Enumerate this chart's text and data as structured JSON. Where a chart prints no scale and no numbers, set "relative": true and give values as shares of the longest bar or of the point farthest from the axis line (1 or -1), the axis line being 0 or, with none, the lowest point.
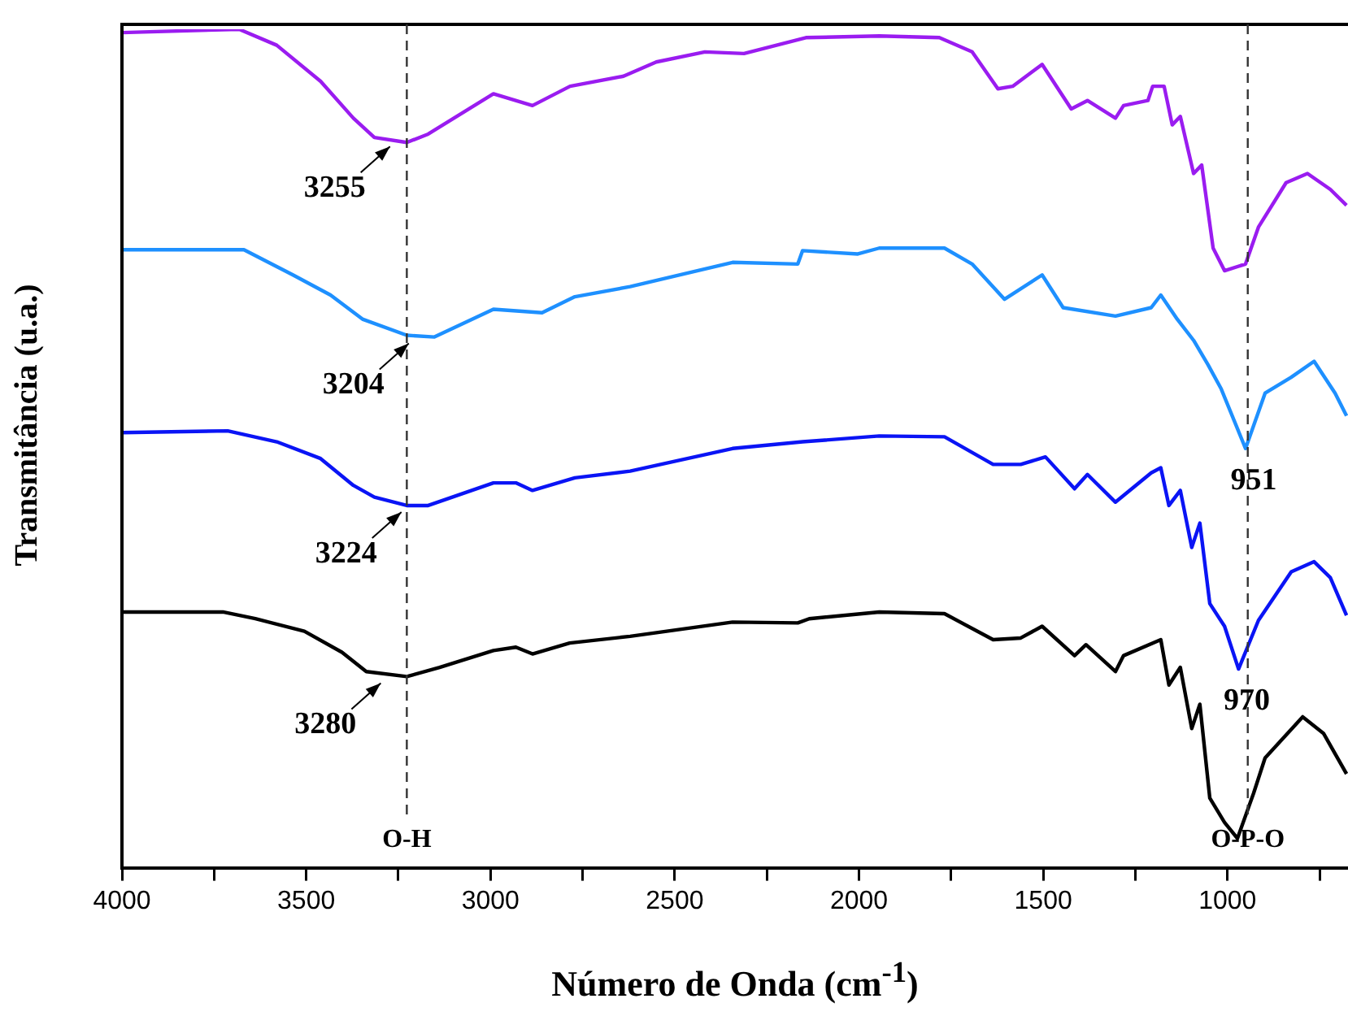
{
  "chart_data": {
    "type": "line",
    "relative": true,
    "xlabel": "Número de Onda (cm$^{-1}$)",
    "ylabel": "Transmitância (u.a.)",
    "xlim": [
      4000,
      673
    ],
    "xticks": [
      4000,
      {
        "value": 3750,
        "label": null
      },
      3500,
      {
        "value": 3250,
        "label": null
      },
      3000,
      {
        "value": 2750,
        "label": null
      },
      2500,
      {
        "value": 2250,
        "label": null
      },
      2000,
      {
        "value": 1750,
        "label": null
      },
      1500,
      {
        "value": 1250,
        "label": null
      },
      1000,
      {
        "value": 750,
        "label": null
      }
    ],
    "grid": false,
    "legend": false,
    "marker": "none",
    "line_style": "solid",
    "tick_labels": "x",
    "series": [
      {
        "color": "#9a1cf0",
        "x": [
          4000,
          3682,
          3580,
          3461,
          3372,
          3315,
          3227,
          3169,
          2992,
          2886,
          2784,
          2639,
          2550,
          2418,
          2312,
          2144,
          1945,
          1782,
          1693,
          1623,
          1583,
          1503,
          1424,
          1380,
          1304,
          1282,
          1216,
          1203,
          1172,
          1150,
          1128,
          1092,
          1070,
          1039,
          1008,
          951,
          916,
          841,
          783,
          721,
          677
        ],
        "values": [
          0.996,
          1.0,
          0.981,
          0.938,
          0.894,
          0.871,
          0.865,
          0.875,
          0.923,
          0.909,
          0.932,
          0.944,
          0.961,
          0.973,
          0.971,
          0.99,
          0.992,
          0.99,
          0.973,
          0.929,
          0.932,
          0.958,
          0.905,
          0.915,
          0.894,
          0.909,
          0.915,
          0.932,
          0.932,
          0.886,
          0.896,
          0.828,
          0.838,
          0.739,
          0.712,
          0.72,
          0.764,
          0.817,
          0.828,
          0.809,
          0.79
        ]
      },
      {
        "color": "#1e90ff",
        "x": [
          4000,
          3669,
          3536,
          3434,
          3346,
          3227,
          3152,
          2992,
          2860,
          2771,
          2621,
          2343,
          2166,
          2153,
          2003,
          1945,
          1768,
          1693,
          1605,
          1503,
          1446,
          1304,
          1207,
          1181,
          1136,
          1092,
          1053,
          1017,
          951,
          898,
          827,
          765,
          708,
          677
        ],
        "values": [
          0.737,
          0.737,
          0.707,
          0.683,
          0.654,
          0.635,
          0.633,
          0.666,
          0.662,
          0.681,
          0.693,
          0.722,
          0.72,
          0.736,
          0.732,
          0.739,
          0.739,
          0.72,
          0.678,
          0.707,
          0.668,
          0.658,
          0.668,
          0.683,
          0.654,
          0.629,
          0.6,
          0.571,
          0.5,
          0.566,
          0.585,
          0.604,
          0.566,
          0.539
        ]
      },
      {
        "color": "#0a14f5",
        "x": [
          4000,
          3713,
          3580,
          3461,
          3372,
          3315,
          3227,
          3169,
          2992,
          2931,
          2886,
          2771,
          2621,
          2343,
          2153,
          1945,
          1768,
          1636,
          1561,
          1494,
          1415,
          1380,
          1304,
          1207,
          1181,
          1159,
          1128,
          1097,
          1075,
          1048,
          1008,
          970,
          916,
          827,
          765,
          721,
          677
        ],
        "values": [
          0.519,
          0.521,
          0.508,
          0.488,
          0.456,
          0.442,
          0.432,
          0.432,
          0.459,
          0.459,
          0.45,
          0.465,
          0.473,
          0.5,
          0.508,
          0.515,
          0.514,
          0.481,
          0.481,
          0.49,
          0.452,
          0.469,
          0.436,
          0.471,
          0.477,
          0.432,
          0.45,
          0.382,
          0.411,
          0.315,
          0.288,
          0.237,
          0.295,
          0.353,
          0.365,
          0.346,
          0.301
        ]
      },
      {
        "color": "#000000",
        "x": [
          4000,
          3726,
          3638,
          3505,
          3403,
          3337,
          3227,
          3138,
          2992,
          2931,
          2886,
          2785,
          2621,
          2343,
          2166,
          2135,
          1945,
          1768,
          1636,
          1561,
          1503,
          1415,
          1384,
          1304,
          1282,
          1181,
          1159,
          1128,
          1097,
          1075,
          1048,
          1008,
          973,
          929,
          898,
          796,
          739,
          677
        ],
        "values": [
          0.305,
          0.305,
          0.297,
          0.282,
          0.257,
          0.234,
          0.228,
          0.239,
          0.259,
          0.263,
          0.255,
          0.268,
          0.276,
          0.293,
          0.292,
          0.297,
          0.305,
          0.303,
          0.272,
          0.274,
          0.288,
          0.253,
          0.266,
          0.234,
          0.253,
          0.272,
          0.218,
          0.239,
          0.166,
          0.195,
          0.083,
          0.054,
          0.035,
          0.089,
          0.131,
          0.18,
          0.16,
          0.112
        ]
      }
    ],
    "ref_lines": [
      {
        "axis": "x",
        "value": 3227,
        "label": "O-H",
        "line_style": "dashed",
        "color": "#333333"
      },
      {
        "axis": "x",
        "value": 945,
        "label": "O-P-O",
        "line_style": "dashed",
        "color": "#333333"
      }
    ],
    "annotations": [
      {
        "text": "3255",
        "x": 3255,
        "y": 0.868
      },
      {
        "text": "3204",
        "x": 3204,
        "y": 0.633
      },
      {
        "text": "3224",
        "x": 3224,
        "y": 0.432
      },
      {
        "text": "3280",
        "x": 3280,
        "y": 0.228
      },
      {
        "text": "951",
        "x": 951,
        "y": 0.5
      },
      {
        "text": "970",
        "x": 970,
        "y": 0.237
      }
    ]
  }
}
